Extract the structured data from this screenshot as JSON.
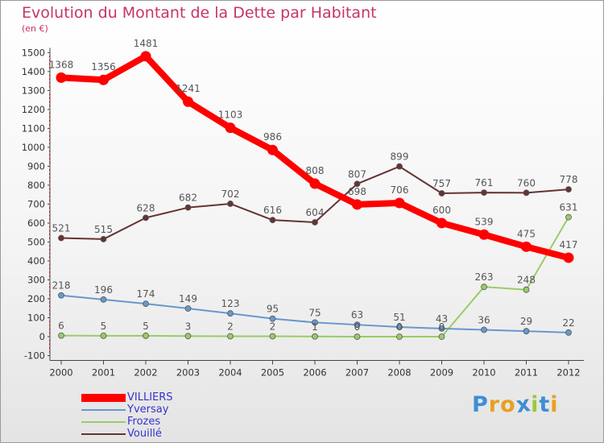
{
  "title": "Evolution du Montant de la Dette par Habitant",
  "subtitle": "(en €)",
  "logo": {
    "text": "Proxiti",
    "colors": [
      "#3e8ed4",
      "#e9a020",
      "#e9a020",
      "#3e8ed4",
      "#9ac93c",
      "#3e8ed4",
      "#e9a020"
    ]
  },
  "chart_data": {
    "type": "line",
    "title": "Evolution du Montant de la Dette par Habitant",
    "subtitle": "(en €)",
    "xlabel": "",
    "ylabel": "",
    "x": [
      "2000",
      "2001",
      "2002",
      "2003",
      "2004",
      "2005",
      "2006",
      "2007",
      "2008",
      "2009",
      "2010",
      "2011",
      "2012"
    ],
    "ylim": [
      -100,
      1500
    ],
    "yticks": [
      -100,
      0,
      100,
      200,
      300,
      400,
      500,
      600,
      700,
      800,
      900,
      1000,
      1100,
      1200,
      1300,
      1400,
      1500
    ],
    "grid": false,
    "legend_position": "bottom-left",
    "series": [
      {
        "name": "VILLIERS",
        "color": "#ff0000",
        "label_color": "#3333cc",
        "values": [
          1368,
          1356,
          1481,
          1241,
          1103,
          986,
          808,
          698,
          706,
          600,
          539,
          475,
          417
        ]
      },
      {
        "name": "Yversay",
        "color": "#6699cc",
        "label_color": "#3333cc",
        "values": [
          218,
          196,
          174,
          149,
          123,
          95,
          75,
          63,
          51,
          43,
          36,
          29,
          22
        ]
      },
      {
        "name": "Frozes",
        "color": "#99cc66",
        "label_color": "#3333cc",
        "values": [
          6,
          5,
          5,
          3,
          2,
          2,
          1,
          0,
          0,
          0,
          263,
          248,
          631
        ]
      },
      {
        "name": "Vouillé",
        "color": "#663333",
        "label_color": "#3333cc",
        "values": [
          521,
          515,
          628,
          682,
          702,
          616,
          604,
          807,
          899,
          757,
          761,
          760,
          778
        ]
      }
    ],
    "point_labels": [
      [
        "1368",
        "1356",
        "1481",
        "1241",
        "1103",
        "986",
        "808",
        "698",
        "706",
        "600",
        "539",
        "475",
        "417"
      ],
      [
        "218",
        "196",
        "174",
        "149",
        "123",
        "95",
        "75",
        "63",
        "51",
        "43",
        "36",
        "29",
        "22"
      ],
      [
        "6",
        "5",
        "5",
        "3",
        "2",
        "2",
        "1",
        "0",
        "0",
        "0",
        "263",
        "248",
        "631"
      ],
      [
        "521",
        "515",
        "628",
        "682",
        "702",
        "616",
        "604",
        "807",
        "899",
        "757",
        "761",
        "760",
        "778"
      ]
    ]
  }
}
